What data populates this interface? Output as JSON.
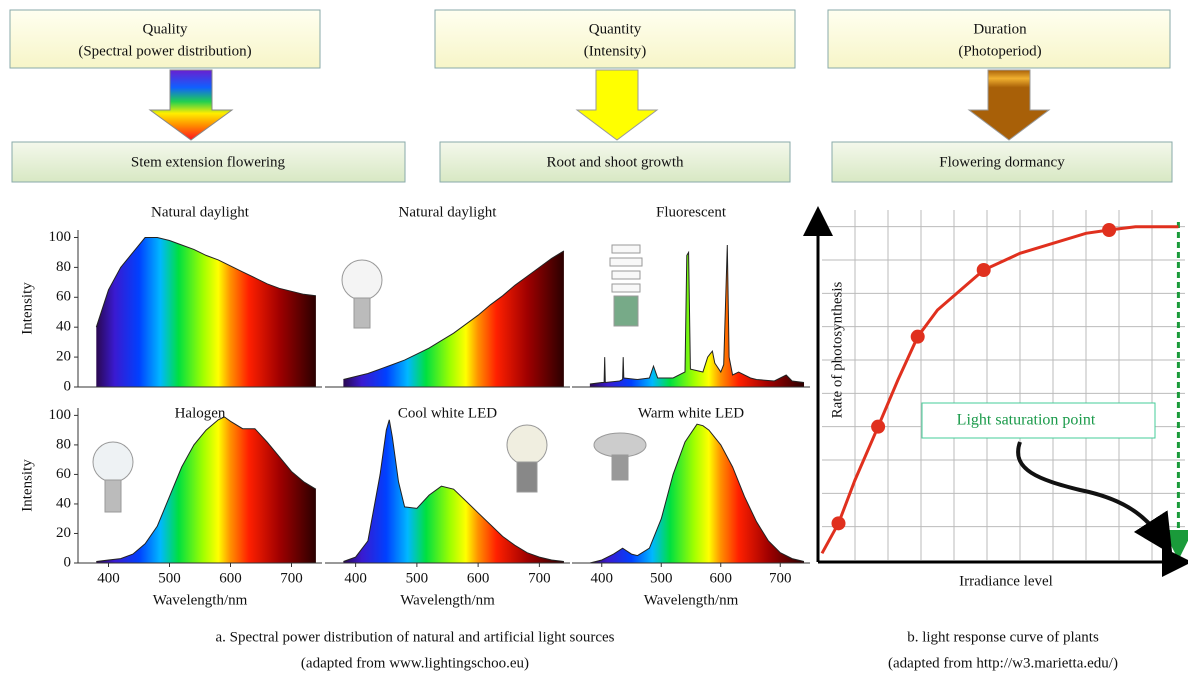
{
  "diagram": {
    "columns": [
      {
        "top": [
          "Quality",
          "(Spectral power distribution)"
        ],
        "bottom": "Stem extension flowering"
      },
      {
        "top": [
          "Quantity",
          "(Intensity)"
        ],
        "bottom": "Root and shoot growth"
      },
      {
        "top": [
          "Duration",
          "(Photoperiod)"
        ],
        "bottom": "Flowering dormancy"
      }
    ]
  },
  "chart_data": [
    {
      "type": "area",
      "title": "Natural daylight",
      "ylabel": "Intensity",
      "xlim": [
        350,
        750
      ],
      "ylim": [
        0,
        105
      ],
      "yticks": [
        0,
        20,
        40,
        60,
        80,
        100
      ],
      "x": [
        380,
        400,
        420,
        440,
        460,
        480,
        500,
        520,
        540,
        560,
        580,
        600,
        620,
        640,
        660,
        680,
        700,
        720,
        740
      ],
      "values": [
        40,
        65,
        80,
        90,
        100,
        100,
        98,
        95,
        92,
        88,
        85,
        81,
        77,
        73,
        69,
        66,
        64,
        62,
        61
      ]
    },
    {
      "type": "area",
      "title": "Natural daylight",
      "xlim": [
        350,
        750
      ],
      "ylim": [
        0,
        105
      ],
      "x": [
        380,
        400,
        420,
        440,
        460,
        480,
        500,
        520,
        540,
        560,
        580,
        600,
        620,
        640,
        660,
        680,
        700,
        720,
        740
      ],
      "values": [
        5,
        7,
        9,
        12,
        15,
        18,
        22,
        26,
        31,
        36,
        42,
        48,
        55,
        61,
        68,
        74,
        80,
        86,
        91
      ]
    },
    {
      "type": "area",
      "title": "Fluorescent",
      "xlim": [
        350,
        750
      ],
      "ylim": [
        0,
        105
      ],
      "x": [
        380,
        400,
        404,
        405,
        406,
        430,
        435,
        436,
        437,
        460,
        480,
        487,
        494,
        520,
        540,
        543,
        546,
        549,
        570,
        578,
        582,
        586,
        590,
        600,
        605,
        611,
        614,
        620,
        630,
        650,
        660,
        690,
        700,
        710,
        720,
        740
      ],
      "values": [
        2,
        3,
        3,
        20,
        3,
        4,
        5,
        20,
        6,
        5,
        6,
        14,
        6,
        6,
        10,
        88,
        90,
        12,
        10,
        20,
        22,
        24,
        16,
        10,
        15,
        95,
        20,
        8,
        10,
        6,
        5,
        4,
        6,
        8,
        4,
        3
      ]
    },
    {
      "type": "area",
      "title": "Halogen",
      "ylabel": "Intensity",
      "xlabel": "Wavelength/nm",
      "xlim": [
        350,
        750
      ],
      "ylim": [
        0,
        105
      ],
      "xticks": [
        400,
        500,
        600,
        700
      ],
      "yticks": [
        0,
        20,
        40,
        60,
        80,
        100
      ],
      "x": [
        380,
        400,
        420,
        440,
        460,
        480,
        500,
        520,
        540,
        560,
        580,
        590,
        600,
        620,
        640,
        660,
        680,
        700,
        720,
        740
      ],
      "values": [
        1,
        2,
        3,
        6,
        13,
        25,
        45,
        65,
        80,
        90,
        97,
        99,
        96,
        91,
        91,
        82,
        72,
        62,
        55,
        50
      ]
    },
    {
      "type": "area",
      "title": "Cool white LED",
      "xlabel": "Wavelength/nm",
      "xlim": [
        350,
        750
      ],
      "ylim": [
        0,
        105
      ],
      "xticks": [
        400,
        500,
        600,
        700
      ],
      "x": [
        380,
        400,
        420,
        440,
        450,
        455,
        460,
        470,
        480,
        500,
        520,
        540,
        560,
        580,
        600,
        620,
        640,
        660,
        680,
        700,
        720,
        740
      ],
      "values": [
        1,
        4,
        15,
        60,
        90,
        97,
        85,
        55,
        38,
        37,
        46,
        52,
        50,
        42,
        34,
        26,
        18,
        12,
        7,
        4,
        2,
        1
      ]
    },
    {
      "type": "area",
      "title": "Warm white LED",
      "xlabel": "Wavelength/nm",
      "xlim": [
        350,
        750
      ],
      "ylim": [
        0,
        105
      ],
      "xticks": [
        400,
        500,
        600,
        700
      ],
      "x": [
        380,
        400,
        420,
        435,
        450,
        460,
        480,
        500,
        520,
        540,
        560,
        570,
        580,
        600,
        620,
        640,
        660,
        680,
        700,
        720,
        740
      ],
      "values": [
        0,
        2,
        6,
        10,
        6,
        5,
        10,
        30,
        60,
        82,
        94,
        93,
        90,
        80,
        65,
        45,
        28,
        15,
        7,
        3,
        1
      ]
    },
    {
      "type": "line",
      "xlabel": "Irradiance level",
      "ylabel": "Rate of photosynthesis",
      "annotation": "Light saturation point",
      "xlim": [
        0,
        11
      ],
      "ylim": [
        0,
        10.5
      ],
      "xticks": [
        1,
        2,
        3,
        4,
        5,
        6,
        7,
        8,
        9,
        10
      ],
      "yticks": [
        1,
        2,
        3,
        4,
        5,
        6,
        7,
        8,
        9,
        10
      ],
      "grid": true,
      "saturation_x": 10.8,
      "series": [
        {
          "color": "#e0301e",
          "x": [
            0,
            0.5,
            1,
            1.7,
            2.3,
            2.9,
            3.5,
            4.2,
            4.9,
            6,
            7,
            8,
            8.7,
            9.5,
            10.8
          ],
          "values": [
            0.2,
            1.1,
            2.4,
            4,
            5.4,
            6.7,
            7.5,
            8.1,
            8.7,
            9.2,
            9.5,
            9.8,
            9.9,
            10,
            10
          ]
        },
        {
          "color": "#e0301e",
          "marker": "circle",
          "x": [
            0.5,
            1.7,
            2.9,
            4.9,
            8.7
          ],
          "values": [
            1.1,
            4,
            6.7,
            8.7,
            9.9
          ]
        }
      ]
    }
  ],
  "captions": [
    "a. Spectral power distribution of natural and artificial light sources",
    "(adapted from www.lightingschoo.eu)",
    "b. light response curve of plants",
    "(adapted from http://w3.marietta.edu/)"
  ]
}
